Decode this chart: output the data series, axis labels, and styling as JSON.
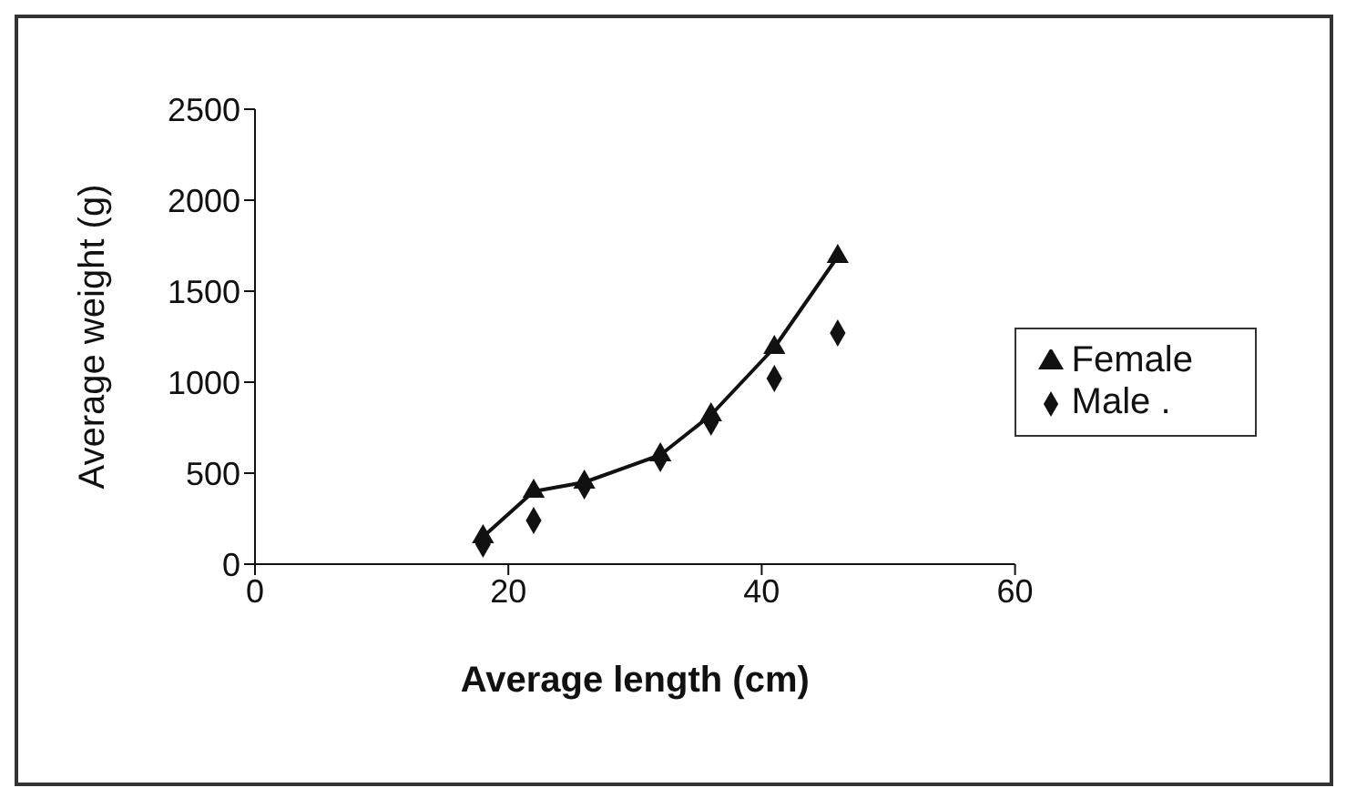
{
  "chart_data": {
    "type": "scatter",
    "xlabel": "Average length (cm)",
    "ylabel": "Average weight (g)",
    "xlim": [
      0,
      60
    ],
    "xticks": [
      0,
      20,
      40,
      60
    ],
    "ylim": [
      0,
      2500
    ],
    "yticks": [
      0,
      500,
      1000,
      1500,
      2000,
      2500
    ],
    "grid": false,
    "legend": "right",
    "series": [
      {
        "name": "Male .",
        "marker": "diamond",
        "color": "#111111",
        "x": [
          18,
          22,
          26,
          32,
          36,
          41,
          46
        ],
        "values": [
          110,
          240,
          430,
          580,
          780,
          1020,
          1270
        ]
      },
      {
        "name": "Female",
        "type": "line",
        "marker": "triangle",
        "color": "#111111",
        "x": [
          18,
          22,
          26,
          32,
          36,
          41,
          46
        ],
        "values": [
          150,
          400,
          450,
          600,
          820,
          1190,
          1690
        ]
      }
    ]
  }
}
